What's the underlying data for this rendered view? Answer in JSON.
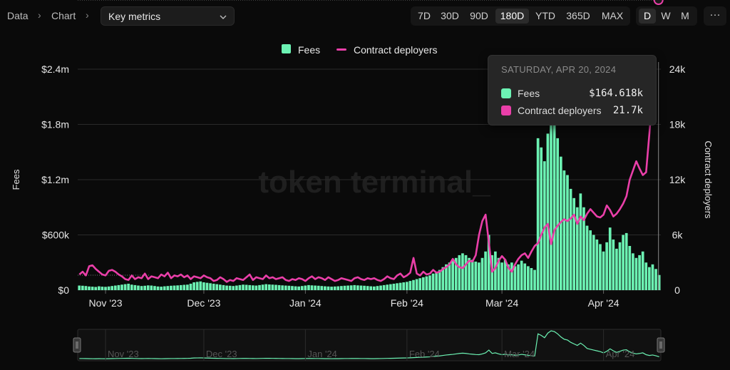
{
  "breadcrumb": {
    "items": [
      "Data",
      "Chart"
    ]
  },
  "metric_select": {
    "value": "Key metrics"
  },
  "time_ranges": {
    "options": [
      "7D",
      "30D",
      "90D",
      "180D",
      "YTD",
      "365D",
      "MAX"
    ],
    "selected": "180D"
  },
  "granularity": {
    "options": [
      "D",
      "W",
      "M"
    ],
    "selected": "D"
  },
  "more_label": "···",
  "watermark": "token terminal_",
  "tooltip": {
    "date": "SATURDAY, APR 20, 2024",
    "rows": [
      {
        "name": "Fees",
        "value": "$164.618k",
        "color": "#6cf2b3"
      },
      {
        "name": "Contract deployers",
        "value": "21.7k",
        "color": "#ea3fa9"
      }
    ]
  },
  "colors": {
    "fees": "#6cf2b3",
    "deployers": "#ea3fa9",
    "background": "#0a0a0a"
  },
  "chart_data": {
    "type": "bar",
    "title": "",
    "xlabel": "",
    "ylabel": "Fees",
    "y2label": "Contract deployers",
    "legend": [
      "Fees",
      "Contract deployers"
    ],
    "legend_position": "top-center",
    "grid": true,
    "ylim": [
      0,
      2400000
    ],
    "y2lim": [
      0,
      24000
    ],
    "y_ticks": [
      "$0",
      "$600k",
      "$1.2m",
      "$1.8m",
      "$2.4m"
    ],
    "y2_ticks": [
      "0",
      "6k",
      "12k",
      "18k",
      "24k"
    ],
    "x_ticks": [
      "Nov '23",
      "Dec '23",
      "Jan '24",
      "Feb '24",
      "Mar '24",
      "Apr '24"
    ],
    "x_range": [
      "2023-10-24",
      "2024-04-21"
    ],
    "series": [
      {
        "name": "Fees",
        "type": "bar",
        "axis": "left",
        "values": [
          50000,
          48000,
          45000,
          40000,
          38000,
          35000,
          42000,
          38000,
          36000,
          40000,
          45000,
          50000,
          55000,
          60000,
          65000,
          70000,
          60000,
          55000,
          50000,
          45000,
          48000,
          52000,
          50000,
          45000,
          40000,
          38000,
          42000,
          45000,
          48000,
          50000,
          52000,
          55000,
          58000,
          60000,
          70000,
          85000,
          90000,
          95000,
          85000,
          80000,
          75000,
          70000,
          65000,
          60000,
          55000,
          50000,
          48000,
          45000,
          50000,
          55000,
          60000,
          58000,
          55000,
          52000,
          50000,
          55000,
          60000,
          65000,
          62000,
          60000,
          58000,
          55000,
          52000,
          50000,
          48000,
          45000,
          42000,
          40000,
          45000,
          50000,
          55000,
          52000,
          50000,
          48000,
          45000,
          42000,
          40000,
          38000,
          40000,
          42000,
          45000,
          48000,
          50000,
          52000,
          55000,
          52000,
          50000,
          48000,
          45000,
          42000,
          40000,
          45000,
          50000,
          55000,
          60000,
          65000,
          70000,
          75000,
          80000,
          85000,
          90000,
          100000,
          110000,
          120000,
          130000,
          140000,
          150000,
          160000,
          180000,
          200000,
          220000,
          250000,
          280000,
          300000,
          320000,
          350000,
          380000,
          400000,
          380000,
          350000,
          330000,
          310000,
          300000,
          350000,
          420000,
          600000,
          380000,
          420000,
          350000,
          300000,
          330000,
          280000,
          300000,
          260000,
          280000,
          320000,
          290000,
          260000,
          240000,
          220000,
          1650000,
          1550000,
          1400000,
          1700000,
          1850000,
          1800000,
          1650000,
          1450000,
          1300000,
          1250000,
          1100000,
          1000000,
          900000,
          1050000,
          900000,
          700000,
          650000,
          600000,
          550000,
          500000,
          420000,
          520000,
          680000,
          550000,
          450000,
          520000,
          600000,
          620000,
          480000,
          400000,
          350000,
          380000,
          420000,
          300000,
          250000,
          280000,
          230000,
          164618
        ]
      },
      {
        "name": "Contract deployers",
        "type": "line",
        "axis": "right",
        "values": [
          1700,
          2000,
          1600,
          2600,
          2700,
          2300,
          2000,
          1700,
          1600,
          2100,
          2200,
          2000,
          1700,
          1500,
          1200,
          1100,
          1600,
          1200,
          1400,
          1300,
          1800,
          1200,
          1500,
          1400,
          1300,
          1700,
          1500,
          1900,
          1300,
          1600,
          1500,
          1700,
          1400,
          1600,
          1200,
          1500,
          1400,
          1300,
          1600,
          1400,
          1300,
          1000,
          1100,
          1400,
          1200,
          900,
          1100,
          1000,
          1300,
          1200,
          1100,
          1400,
          1700,
          1100,
          1400,
          1300,
          1200,
          1600,
          1300,
          1400,
          1200,
          1300,
          1400,
          1100,
          1000,
          1200,
          1100,
          1300,
          1200,
          1000,
          1300,
          1500,
          1200,
          1400,
          1300,
          1100,
          1400,
          1200,
          1000,
          1100,
          1300,
          1200,
          1100,
          1000,
          1300,
          1400,
          1200,
          1100,
          1300,
          1200,
          1300,
          1100,
          1000,
          1200,
          1500,
          1300,
          1200,
          1600,
          1800,
          1400,
          1600,
          1900,
          3500,
          1800,
          1600,
          2000,
          1700,
          1800,
          2200,
          1900,
          2000,
          2300,
          2500,
          2800,
          3400,
          2800,
          2500,
          2400,
          2800,
          3200,
          3100,
          3800,
          6000,
          7500,
          8200,
          5200,
          2000,
          2400,
          3200,
          3700,
          3300,
          2400,
          2000,
          2800,
          3400,
          3800,
          4000,
          3500,
          4200,
          4800,
          5100,
          6000,
          6800,
          7200,
          5000,
          6500,
          7000,
          7400,
          7700,
          7500,
          7800,
          8200,
          7200,
          8000,
          7600,
          8300,
          8800,
          8400,
          8000,
          7900,
          8200,
          9200,
          8700,
          8000,
          8300,
          8800,
          9400,
          10200,
          12000,
          13000,
          14000,
          13200,
          12500,
          12800,
          17000,
          21700
        ]
      }
    ],
    "navigator_ticks": [
      "Nov '23",
      "Dec '23",
      "Jan '24",
      "Feb '24",
      "Mar '24",
      "Apr '24"
    ]
  }
}
